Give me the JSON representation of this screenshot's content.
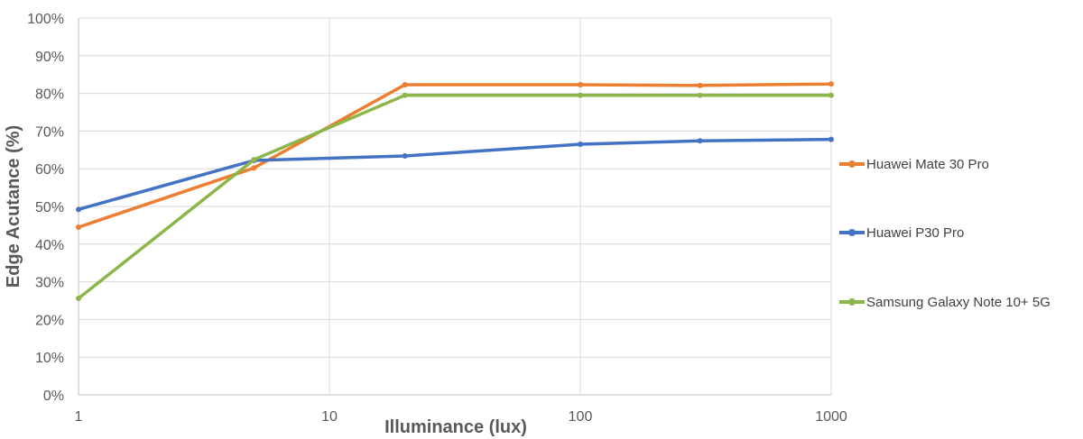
{
  "chart_data": {
    "type": "line",
    "title": "",
    "xlabel": "Illuminance (lux)",
    "ylabel": "Edge Acutance (%)",
    "x_scale": "log",
    "xlim": [
      1,
      1000
    ],
    "ylim": [
      0,
      100
    ],
    "x_ticks": [
      "1",
      "10",
      "100",
      "1000"
    ],
    "y_ticks": [
      "0%",
      "10%",
      "20%",
      "30%",
      "40%",
      "50%",
      "60%",
      "70%",
      "80%",
      "90%",
      "100%"
    ],
    "grid": true,
    "legend_position": "right",
    "x": [
      1,
      5,
      20,
      100,
      300,
      1000
    ],
    "series": [
      {
        "name": "Huawei Mate 30 Pro",
        "color": "#ED7D31",
        "values": [
          44.5,
          60.2,
          82.3,
          82.3,
          82.1,
          82.5
        ]
      },
      {
        "name": "Huawei P30 Pro",
        "color": "#4472C4",
        "values": [
          49.2,
          62.2,
          63.4,
          66.5,
          67.4,
          67.8
        ]
      },
      {
        "name": "Samsung Galaxy Note 10+ 5G",
        "color": "#8CB64A",
        "values": [
          25.6,
          62.4,
          79.5,
          79.5,
          79.5,
          79.5
        ]
      }
    ]
  }
}
